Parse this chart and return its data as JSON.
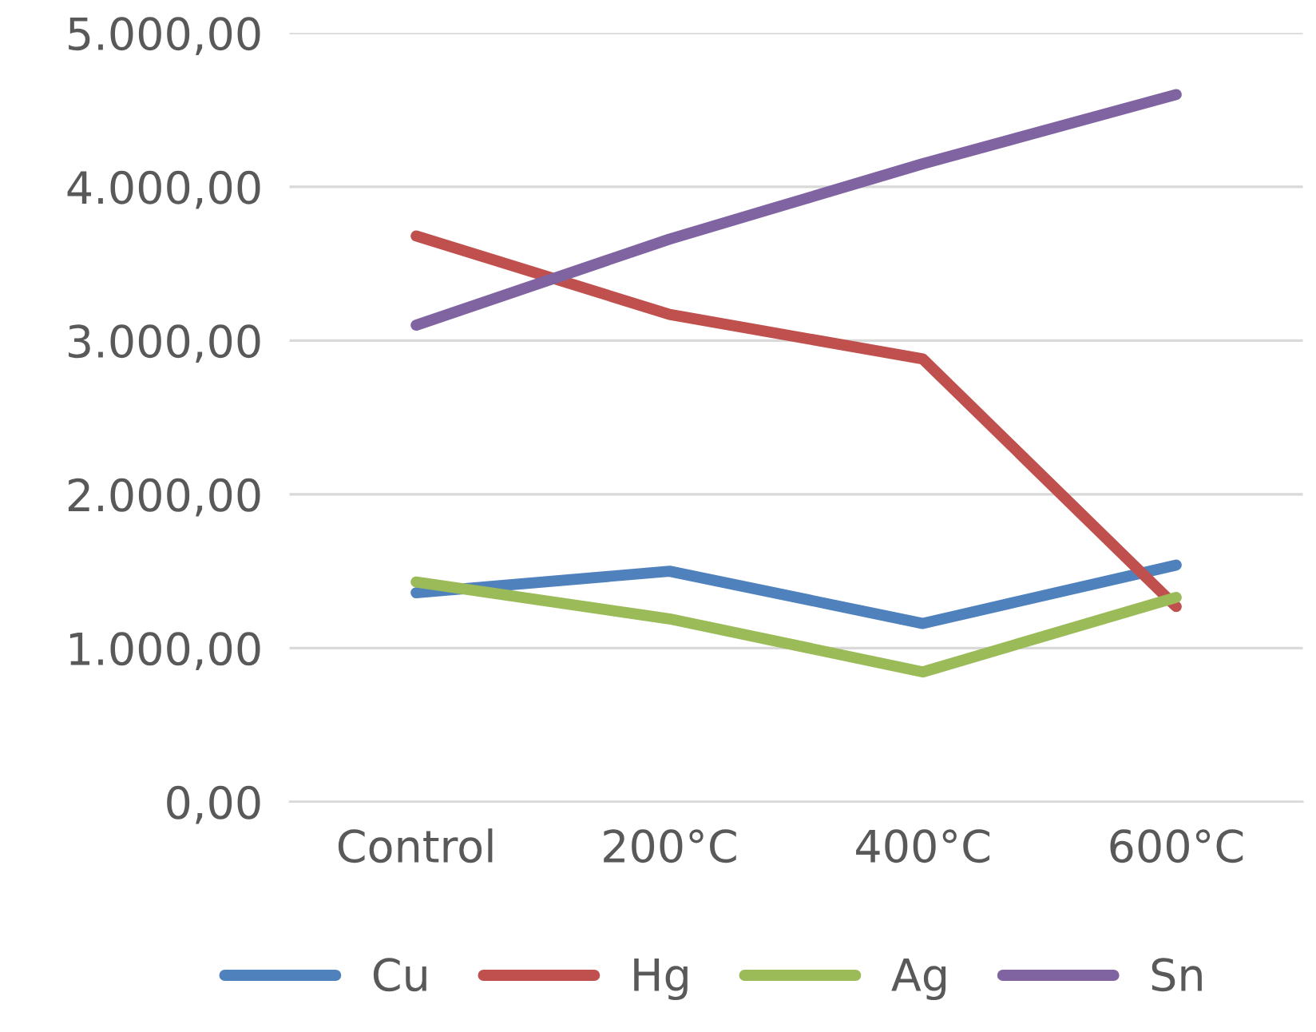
{
  "chart_data": {
    "type": "line",
    "categories": [
      "Control",
      "200°C",
      "400°C",
      "600°C"
    ],
    "series": [
      {
        "name": "Cu",
        "color": "#4f81bd",
        "values": [
          1360,
          1500,
          1160,
          1540
        ]
      },
      {
        "name": "Hg",
        "color": "#c0504d",
        "values": [
          3680,
          3170,
          2880,
          1270
        ]
      },
      {
        "name": "Ag",
        "color": "#9bbb59",
        "values": [
          1430,
          1190,
          845,
          1330
        ]
      },
      {
        "name": "Sn",
        "color": "#8064a2",
        "values": [
          3100,
          3660,
          4150,
          4600
        ]
      }
    ],
    "ylim": [
      0,
      5000
    ],
    "yticks": [
      {
        "value": 0,
        "label": "0,00"
      },
      {
        "value": 1000,
        "label": "1.000,00"
      },
      {
        "value": 2000,
        "label": "2.000,00"
      },
      {
        "value": 3000,
        "label": "3.000,00"
      },
      {
        "value": 4000,
        "label": "4.000,00"
      },
      {
        "value": 5000,
        "label": "5.000,00"
      }
    ],
    "grid": "y",
    "legend": "bottom",
    "marker": "none",
    "line_style": "solid"
  }
}
